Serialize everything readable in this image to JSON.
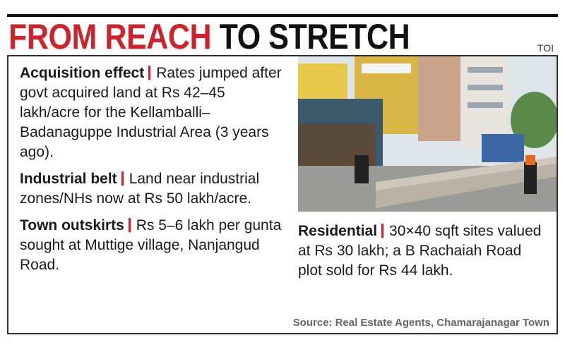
{
  "header": {
    "title_red": "FROM REACH",
    "title_black": "TO STRETCH",
    "brand": "TOI"
  },
  "items": [
    {
      "heading": "Acquisition effect",
      "text": "Rates jumped after govt acquired land at Rs 42–45 lakh/acre for the Kellamballi–Badanaguppe Industrial Area (3 years ago)."
    },
    {
      "heading": "Industrial belt",
      "text": "Land near industrial zones/NHs now at Rs 50 lakh/acre."
    },
    {
      "heading": "Town outskirts",
      "text": "Rs 5–6 lakh per gunta sought at Muttige village, Nanjangud Road."
    },
    {
      "heading": "Residential",
      "text": "30×40 sqft sites valued at Rs 30 lakh; a B Rachaiah Road plot sold for Rs 44 lakh."
    }
  ],
  "source": "Source: Real Estate Agents, Chamarajanagar Town"
}
